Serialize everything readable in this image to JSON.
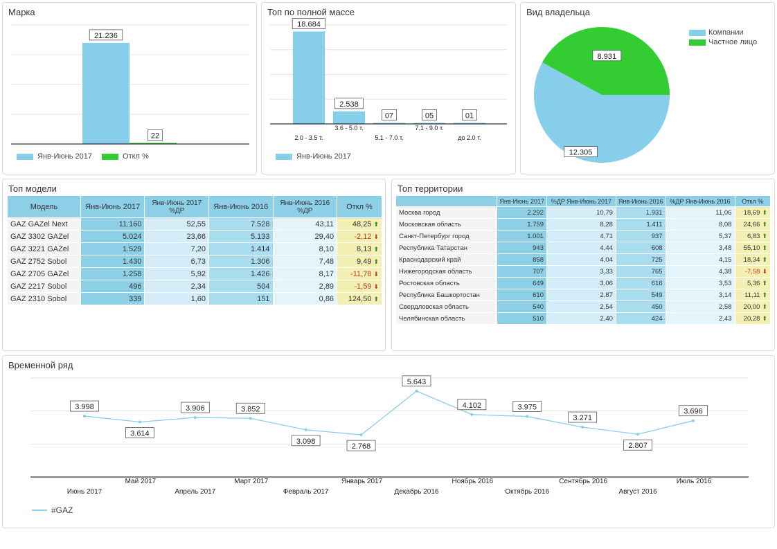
{
  "colors": {
    "blue": "#87ceeb",
    "green": "#33cc33",
    "line": "#87ceeb",
    "up": "#2e8b2e",
    "down": "#c0392b"
  },
  "marka": {
    "title": "Марка",
    "legend": [
      {
        "label": "Янв-Июнь 2017",
        "color": "#87ceeb"
      },
      {
        "label": "Откл %",
        "color": "#33cc33"
      }
    ]
  },
  "top_mass": {
    "title": "Топ по полной массе",
    "legend": [
      {
        "label": "Янв-Июнь 2017",
        "color": "#87ceeb"
      }
    ]
  },
  "owner": {
    "title": "Вид владельца",
    "legend": [
      {
        "label": "Компании",
        "color": "#87ceeb"
      },
      {
        "label": "Частное лицо",
        "color": "#33cc33"
      }
    ]
  },
  "top_models": {
    "title": "Топ модели",
    "headers": [
      "Модель",
      "Янв-Июнь 2017",
      "Янв-Июнь 2017 %ДР",
      "Янв-Июнь 2016",
      "Янв-Июнь 2016 %ДР",
      "Откл %"
    ],
    "rows": [
      {
        "name": "GAZ GAZel Next",
        "v2017": "11.160",
        "p2017": "52,55",
        "v2016": "7.528",
        "p2016": "43,11",
        "dev": "48,25",
        "trend": "up"
      },
      {
        "name": "GAZ 3302 GAZel",
        "v2017": "5.024",
        "p2017": "23,66",
        "v2016": "5.133",
        "p2016": "29,40",
        "dev": "-2,12",
        "trend": "down"
      },
      {
        "name": "GAZ 3221 GAZel",
        "v2017": "1.529",
        "p2017": "7,20",
        "v2016": "1.414",
        "p2016": "8,10",
        "dev": "8,13",
        "trend": "up"
      },
      {
        "name": "GAZ 2752 Sobol",
        "v2017": "1.430",
        "p2017": "6,73",
        "v2016": "1.306",
        "p2016": "7,48",
        "dev": "9,49",
        "trend": "up"
      },
      {
        "name": "GAZ 2705 GAZel",
        "v2017": "1.258",
        "p2017": "5,92",
        "v2016": "1.426",
        "p2016": "8,17",
        "dev": "-11,78",
        "trend": "down"
      },
      {
        "name": "GAZ 2217 Sobol",
        "v2017": "496",
        "p2017": "2,34",
        "v2016": "504",
        "p2016": "2,89",
        "dev": "-1,59",
        "trend": "down"
      },
      {
        "name": "GAZ 2310 Sobol",
        "v2017": "339",
        "p2017": "1,60",
        "v2016": "151",
        "p2016": "0,86",
        "dev": "124,50",
        "trend": "up"
      }
    ]
  },
  "top_territories": {
    "title": "Топ территории",
    "headers": [
      "",
      "Янв-Июнь 2017",
      "%ДР Янв-Июнь 2017",
      "Янв-Июнь 2016",
      "%ДР Янв-Июнь 2016",
      "Откл %"
    ],
    "rows": [
      {
        "name": "Москва город",
        "v2017": "2.292",
        "p2017": "10,79",
        "v2016": "1.931",
        "p2016": "11,06",
        "dev": "18,69",
        "trend": "up"
      },
      {
        "name": "Московская область",
        "v2017": "1.759",
        "p2017": "8,28",
        "v2016": "1.411",
        "p2016": "8,08",
        "dev": "24,66",
        "trend": "up"
      },
      {
        "name": "Санкт-Петербург город",
        "v2017": "1.001",
        "p2017": "4,71",
        "v2016": "937",
        "p2016": "5,37",
        "dev": "6,83",
        "trend": "up"
      },
      {
        "name": "Республика Татарстан",
        "v2017": "943",
        "p2017": "4,44",
        "v2016": "608",
        "p2016": "3,48",
        "dev": "55,10",
        "trend": "up"
      },
      {
        "name": "Краснодарский край",
        "v2017": "858",
        "p2017": "4,04",
        "v2016": "725",
        "p2016": "4,15",
        "dev": "18,34",
        "trend": "up"
      },
      {
        "name": "Нижегородская область",
        "v2017": "707",
        "p2017": "3,33",
        "v2016": "765",
        "p2016": "4,38",
        "dev": "-7,58",
        "trend": "down"
      },
      {
        "name": "Ростовская область",
        "v2017": "649",
        "p2017": "3,06",
        "v2016": "616",
        "p2016": "3,53",
        "dev": "5,36",
        "trend": "up"
      },
      {
        "name": "Республика Башкортостан",
        "v2017": "610",
        "p2017": "2,87",
        "v2016": "549",
        "p2016": "3,14",
        "dev": "11,11",
        "trend": "up"
      },
      {
        "name": "Свердловская область",
        "v2017": "540",
        "p2017": "2,54",
        "v2016": "450",
        "p2016": "2,58",
        "dev": "20,00",
        "trend": "up"
      },
      {
        "name": "Челябинская область",
        "v2017": "510",
        "p2017": "2,40",
        "v2016": "424",
        "p2016": "2,43",
        "dev": "20,28",
        "trend": "up"
      }
    ]
  },
  "timeseries": {
    "title": "Временной ряд",
    "legend": [
      {
        "label": "#GAZ",
        "color": "#87ceeb"
      }
    ]
  },
  "chart_data": [
    {
      "id": "marka",
      "type": "bar",
      "categories": [
        ""
      ],
      "series": [
        {
          "name": "Янв-Июнь 2017",
          "values": [
            21236
          ],
          "labels": [
            "21.236"
          ]
        },
        {
          "name": "Откл %",
          "values": [
            22
          ],
          "labels": [
            "22"
          ]
        }
      ],
      "ylim": [
        0,
        25000
      ],
      "grid": true,
      "legend": "bottom-left"
    },
    {
      "id": "top_mass",
      "type": "bar",
      "categories": [
        "2.0 - 3.5 т.",
        "3.6 - 5.0 т.",
        "5.1 - 7.0 т.",
        "7.1 - 9.0 т.",
        "до 2.0 т."
      ],
      "series": [
        {
          "name": "Янв-Июнь 2017",
          "values": [
            18684,
            2538,
            7,
            5,
            1
          ],
          "labels": [
            "18.684",
            "2.538",
            "07",
            "05",
            "01"
          ]
        }
      ],
      "ylim": [
        0,
        20000
      ],
      "grid": true,
      "legend": "bottom-left"
    },
    {
      "id": "owner",
      "type": "pie",
      "categories": [
        "Компании",
        "Частное лицо"
      ],
      "values": [
        12305,
        8931
      ],
      "labels": [
        "12.305",
        "8.931"
      ],
      "legend": "top-right"
    },
    {
      "id": "timeseries",
      "type": "line",
      "categories": [
        "Июнь 2017",
        "Май 2017",
        "Апрель 2017",
        "Март 2017",
        "Февраль 2017",
        "Январь 2017",
        "Декабрь 2016",
        "Ноябрь 2016",
        "Октябрь 2016",
        "Сентябрь 2016",
        "Август 2016",
        "Июль 2016"
      ],
      "series": [
        {
          "name": "#GAZ",
          "values": [
            3998,
            3614,
            3906,
            3852,
            3098,
            2768,
            5643,
            4102,
            3975,
            3271,
            2807,
            3696
          ],
          "labels": [
            "3.998",
            "3.614",
            "3.906",
            "3.852",
            "3.098",
            "2.768",
            "5.643",
            "4.102",
            "3.975",
            "3.271",
            "2.807",
            "3.696"
          ]
        }
      ],
      "ylim": [
        0,
        6500
      ],
      "grid": true,
      "legend": "bottom-left"
    }
  ]
}
